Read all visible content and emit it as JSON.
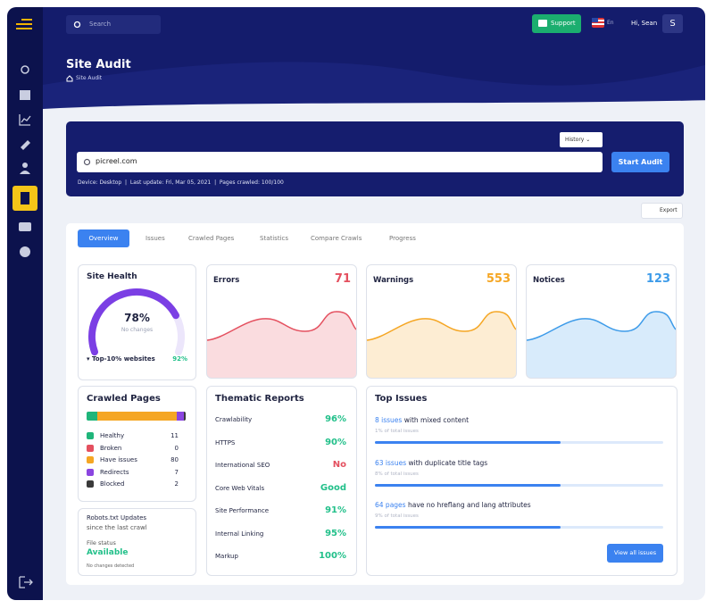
{
  "topbar": {
    "search_placeholder": "Search",
    "support": "Support",
    "language": "En",
    "greeting": "Hi, Sean",
    "avatar": "S"
  },
  "header": {
    "title": "Site Audit",
    "breadcrumb": "Site Audit"
  },
  "audit": {
    "history": "History",
    "url": "picreel.com",
    "button": "Start Audit",
    "device": "Device: Desktop",
    "last_update": "Last update: Fri, Mar 05, 2021",
    "pages_crawled": "Pages crawled: 100/100"
  },
  "export": "Export",
  "tabs": [
    "Overview",
    "Issues",
    "Crawled Pages",
    "Statistics",
    "Compare Crawls",
    "Progress"
  ],
  "site_health": {
    "title": "Site Health",
    "score": 78,
    "score_label": "78%",
    "change": "No changes",
    "benchmark": "Top-10% websites",
    "benchmark_value": "92%"
  },
  "counters": [
    {
      "name": "Errors",
      "value": 71,
      "color": "#e4505f"
    },
    {
      "name": "Warnings",
      "value": 553,
      "color": "#f5a623"
    },
    {
      "name": "Notices",
      "value": 123,
      "color": "#3d9be9"
    }
  ],
  "crawled": {
    "title": "Crawled Pages",
    "items": [
      {
        "name": "Healthy",
        "count": 11,
        "color": "#1fb57a"
      },
      {
        "name": "Broken",
        "count": 0,
        "color": "#e4505f"
      },
      {
        "name": "Have issues",
        "count": 80,
        "color": "#f5a623"
      },
      {
        "name": "Redirects",
        "count": 7,
        "color": "#8b45e0"
      },
      {
        "name": "Blocked",
        "count": 2,
        "color": "#3a3a3a"
      }
    ]
  },
  "robots": {
    "title": "Robots.txt Updates",
    "subtitle": "since the last crawl",
    "label": "File status",
    "status": "Available",
    "note": "No changes detected"
  },
  "thematic": {
    "title": "Thematic Reports",
    "items": [
      {
        "name": "Crawlability",
        "value": "96%",
        "color": "#22c08a"
      },
      {
        "name": "HTTPS",
        "value": "90%",
        "color": "#22c08a"
      },
      {
        "name": "International SEO",
        "value": "No",
        "color": "#e4505f"
      },
      {
        "name": "Core Web Vitals",
        "value": "Good",
        "color": "#22c08a"
      },
      {
        "name": "Site Performance",
        "value": "91%",
        "color": "#22c08a"
      },
      {
        "name": "Internal Linking",
        "value": "95%",
        "color": "#22c08a"
      },
      {
        "name": "Markup",
        "value": "100%",
        "color": "#22c08a"
      }
    ]
  },
  "top_issues": {
    "title": "Top Issues",
    "items": [
      {
        "count": "8 issues",
        "text": "with mixed content",
        "share": "1% of total issues"
      },
      {
        "count": "63 issues",
        "text": "with duplicate title tags",
        "share": "8% of total issues"
      },
      {
        "count": "64 pages",
        "text": "have no hreflang and lang attributes",
        "share": "9% of total issues"
      }
    ],
    "button": "View all issues"
  }
}
